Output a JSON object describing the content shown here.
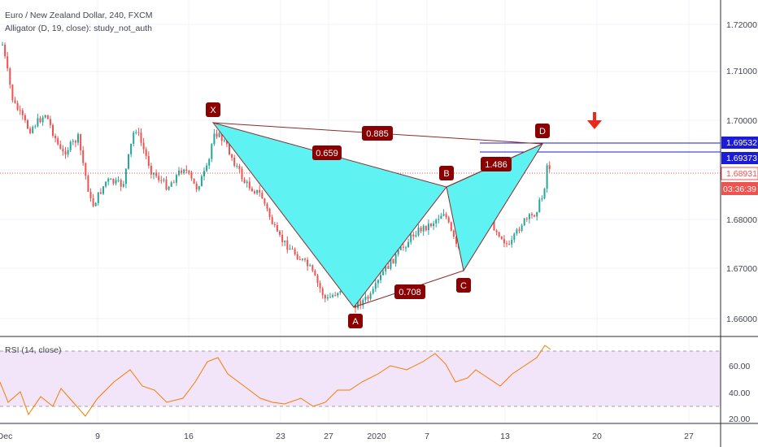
{
  "header": {
    "symbol_line": "Euro / New Zealand Dollar, 240, FXCM",
    "indicator_line": "Alligator (D, 19, close): study_not_auth"
  },
  "rsi": {
    "label": "RSI (14, close)"
  },
  "price_axis": {
    "ticks": [
      "1.72000",
      "1.71000",
      "1.70000",
      "1.69000",
      "1.68000",
      "1.67000",
      "1.66000"
    ],
    "tags": [
      {
        "label": "1.69532",
        "color": "#1b1bd8"
      },
      {
        "label": "1.69373",
        "color": "#1b1bd8"
      },
      {
        "label": "1.68931",
        "color": "#ef5350"
      },
      {
        "label": "03:36:39",
        "color": "#ef5350"
      }
    ]
  },
  "rsi_axis": {
    "ticks": [
      "60.00",
      "40.00",
      "20.00"
    ]
  },
  "time_axis": {
    "ticks": [
      "Dec",
      "9",
      "16",
      "23",
      "27",
      "2020",
      "7",
      "13",
      "20",
      "27"
    ]
  },
  "pattern": {
    "points": [
      "X",
      "A",
      "B",
      "C",
      "D"
    ],
    "ratios": {
      "xb": "0.659",
      "ac": "0.708",
      "bd": "1.486",
      "xd": "0.885"
    },
    "fill_color": "#5ff2f2",
    "point_color": "#8b0000"
  },
  "colors": {
    "up": "#26a69a",
    "down": "#ef5350",
    "signal_arrow": "#e8291c",
    "rsi_line": "#f57c00",
    "rsi_band": "#f3e5f9"
  }
}
